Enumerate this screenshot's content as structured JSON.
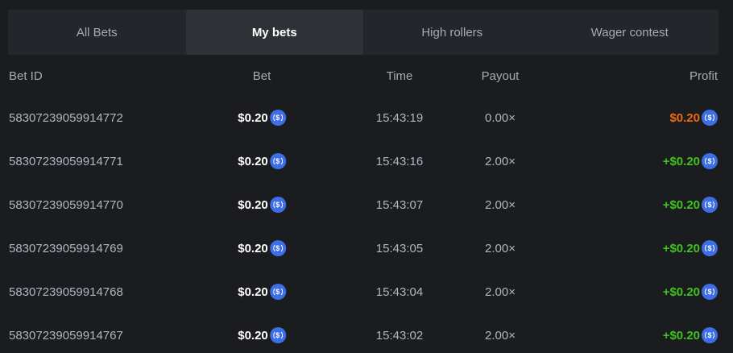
{
  "tabs": [
    {
      "label": "All Bets"
    },
    {
      "label": "My bets",
      "active": true
    },
    {
      "label": "High rollers"
    },
    {
      "label": "Wager contest"
    }
  ],
  "columns": {
    "id": "Bet ID",
    "bet": "Bet",
    "time": "Time",
    "payout": "Payout",
    "profit": "Profit"
  },
  "colors": {
    "loss": "#f0680e",
    "win": "#3ec21c",
    "coin": "#3d6ee6"
  },
  "coin_icon": "usdc-coin-icon",
  "rows": [
    {
      "id": "58307239059914772",
      "bet": "$0.20",
      "time": "15:43:19",
      "payout": "0.00×",
      "profit": "$0.20",
      "win": false
    },
    {
      "id": "58307239059914771",
      "bet": "$0.20",
      "time": "15:43:16",
      "payout": "2.00×",
      "profit": "+$0.20",
      "win": true
    },
    {
      "id": "58307239059914770",
      "bet": "$0.20",
      "time": "15:43:07",
      "payout": "2.00×",
      "profit": "+$0.20",
      "win": true
    },
    {
      "id": "58307239059914769",
      "bet": "$0.20",
      "time": "15:43:05",
      "payout": "2.00×",
      "profit": "+$0.20",
      "win": true
    },
    {
      "id": "58307239059914768",
      "bet": "$0.20",
      "time": "15:43:04",
      "payout": "2.00×",
      "profit": "+$0.20",
      "win": true
    },
    {
      "id": "58307239059914767",
      "bet": "$0.20",
      "time": "15:43:02",
      "payout": "2.00×",
      "profit": "+$0.20",
      "win": true
    }
  ]
}
